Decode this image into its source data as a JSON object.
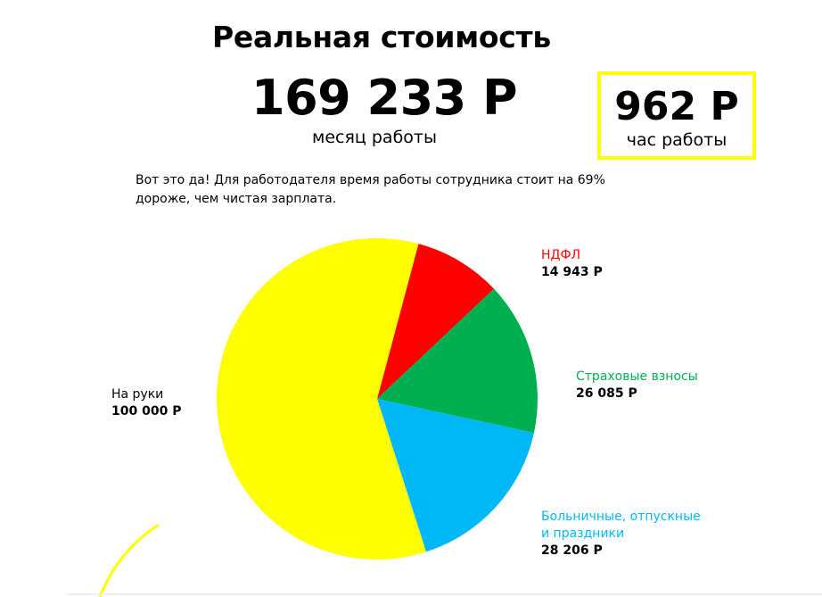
{
  "header": {
    "title": "Реальная стоимость",
    "monthly_value": "169 233 Р",
    "monthly_label": "месяц работы",
    "hourly_value": "962 Р",
    "hourly_label": "час работы"
  },
  "intro": "Вот это да! Для работодателя время работы сотрудника стоит на 69% дороже, чем чистая зарплата.",
  "colors": {
    "accent": "#ffff00",
    "take_home": "#ffff00",
    "ndfl": "#ff0000",
    "insurance": "#00b050",
    "sick_vacation": "#00b8f5"
  },
  "chart_data": {
    "type": "pie",
    "title": "",
    "slices": [
      {
        "name": "НДФЛ",
        "value": 14943,
        "value_label": "14 943 Р",
        "color": "#ff0000"
      },
      {
        "name": "Страховые взносы",
        "value": 26085,
        "value_label": "26 085 Р",
        "color": "#00b050"
      },
      {
        "name": "Больничные, отпускные\nи праздники",
        "value": 28206,
        "value_label": "28 206 Р",
        "color": "#00b8f5"
      },
      {
        "name": "На руки",
        "value": 100000,
        "value_label": "100 000 Р",
        "color": "#ffff00"
      }
    ],
    "legend": "labels beside slices"
  }
}
